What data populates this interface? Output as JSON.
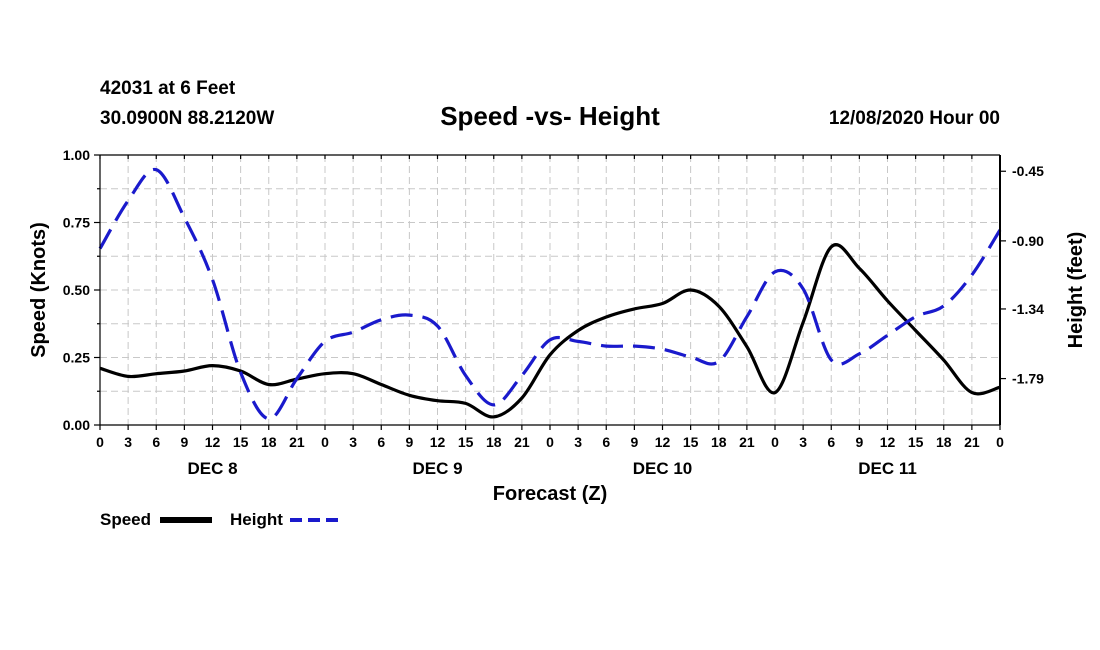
{
  "header": {
    "station_line": "42031 at 6 Feet",
    "coords_line": "30.0900N 88.2120W",
    "date_line": "12/08/2020 Hour 00"
  },
  "chart_data": {
    "type": "line",
    "title": "Speed -vs- Height",
    "xlabel": "Forecast (Z)",
    "ylabel": "Speed (Knots)",
    "y2label": "Height (feet)",
    "x_hours": [
      0,
      3,
      6,
      9,
      12,
      15,
      18,
      21,
      24,
      27,
      30,
      33,
      36,
      39,
      42,
      45,
      48,
      51,
      54,
      57,
      60,
      63,
      66,
      69,
      72,
      75,
      78,
      81,
      84,
      87,
      90,
      93,
      96
    ],
    "x_tick_labels": [
      "0",
      "3",
      "6",
      "9",
      "12",
      "15",
      "18",
      "21",
      "0",
      "3",
      "6",
      "9",
      "12",
      "15",
      "18",
      "21",
      "0",
      "3",
      "6",
      "9",
      "12",
      "15",
      "18",
      "21",
      "0",
      "3",
      "6",
      "9",
      "12",
      "15",
      "18",
      "21",
      "0"
    ],
    "day_labels": [
      {
        "label": "DEC 8",
        "hour": 12
      },
      {
        "label": "DEC 9",
        "hour": 36
      },
      {
        "label": "DEC 10",
        "hour": 60
      },
      {
        "label": "DEC 11",
        "hour": 84
      }
    ],
    "ylim": [
      0,
      1
    ],
    "y_ticks": [
      "0.00",
      "0.25",
      "0.50",
      "0.75",
      "1.00"
    ],
    "y2lim": [
      -2.09,
      -0.345
    ],
    "y2_ticks": [
      "-1.79",
      "-1.34",
      "-0.90",
      "-0.45"
    ],
    "grid": true,
    "legend_position": "bottom-left",
    "series": [
      {
        "name": "Speed",
        "axis": "left",
        "color": "#000000",
        "style": "solid",
        "x": [
          0,
          3,
          6,
          9,
          12,
          15,
          18,
          21,
          24,
          27,
          30,
          33,
          36,
          39,
          42,
          45,
          48,
          51,
          54,
          57,
          60,
          63,
          66,
          69,
          72,
          75,
          78,
          81,
          84,
          87,
          90,
          93,
          96
        ],
        "values": [
          0.21,
          0.18,
          0.19,
          0.2,
          0.22,
          0.2,
          0.15,
          0.17,
          0.19,
          0.19,
          0.15,
          0.11,
          0.09,
          0.08,
          0.03,
          0.1,
          0.26,
          0.35,
          0.4,
          0.43,
          0.45,
          0.5,
          0.44,
          0.29,
          0.12,
          0.38,
          0.66,
          0.58,
          0.46,
          0.35,
          0.24,
          0.12,
          0.14
        ]
      },
      {
        "name": "Height",
        "axis": "right",
        "color": "#1a1acc",
        "style": "dashed",
        "x": [
          0,
          3,
          6,
          9,
          12,
          15,
          18,
          21,
          24,
          27,
          30,
          33,
          36,
          39,
          42,
          45,
          48,
          51,
          54,
          57,
          60,
          63,
          66,
          69,
          72,
          75,
          78,
          81,
          84,
          87,
          90,
          93,
          96
        ],
        "values": [
          -0.95,
          -0.64,
          -0.44,
          -0.75,
          -1.15,
          -1.75,
          -2.05,
          -1.79,
          -1.55,
          -1.49,
          -1.41,
          -1.38,
          -1.45,
          -1.77,
          -1.96,
          -1.77,
          -1.54,
          -1.55,
          -1.58,
          -1.58,
          -1.6,
          -1.65,
          -1.68,
          -1.39,
          -1.1,
          -1.21,
          -1.67,
          -1.63,
          -1.51,
          -1.39,
          -1.32,
          -1.12,
          -0.83
        ]
      }
    ]
  }
}
